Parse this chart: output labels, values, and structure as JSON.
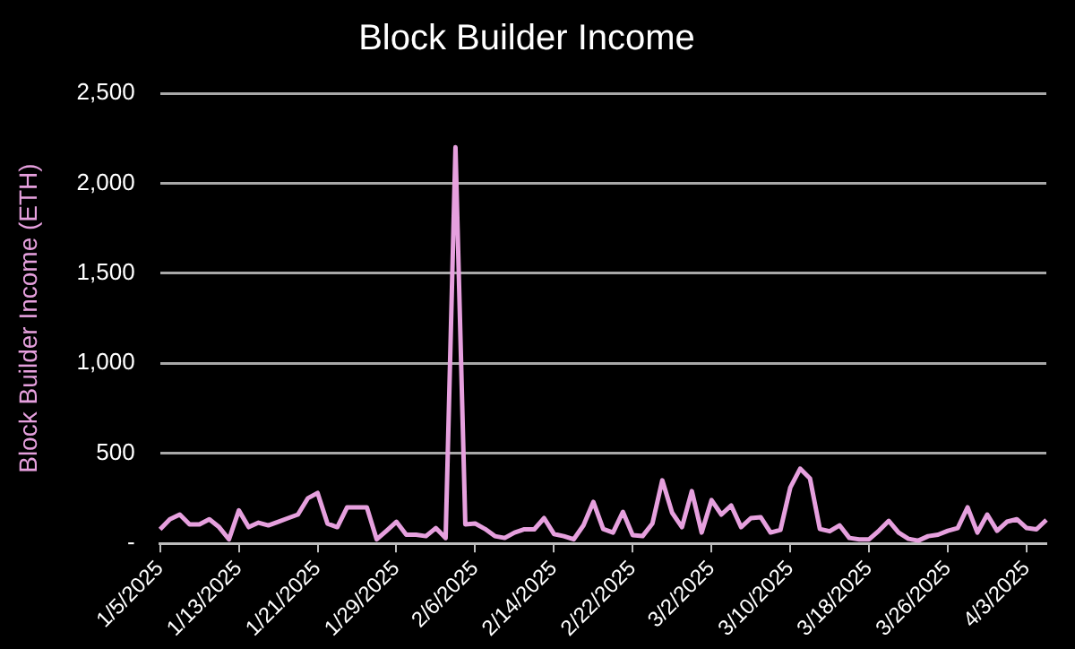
{
  "chart_data": {
    "type": "line",
    "title": "Block Builder Income",
    "ylabel": "Block Builder Income (ETH)",
    "categories": [
      "1/5/2025",
      null,
      null,
      null,
      null,
      null,
      null,
      null,
      "1/13/2025",
      null,
      null,
      null,
      null,
      null,
      null,
      null,
      "1/21/2025",
      null,
      null,
      null,
      null,
      null,
      null,
      null,
      "1/29/2025",
      null,
      null,
      null,
      null,
      null,
      null,
      null,
      "2/6/2025",
      null,
      null,
      null,
      null,
      null,
      null,
      null,
      "2/14/2025",
      null,
      null,
      null,
      null,
      null,
      null,
      null,
      "2/22/2025",
      null,
      null,
      null,
      null,
      null,
      null,
      null,
      "3/2/2025",
      null,
      null,
      null,
      null,
      null,
      null,
      null,
      "3/10/2025",
      null,
      null,
      null,
      null,
      null,
      null,
      null,
      "3/18/2025",
      null,
      null,
      null,
      null,
      null,
      null,
      null,
      "3/26/2025",
      null,
      null,
      null,
      null,
      null,
      null,
      null,
      "4/3/2025",
      null,
      null
    ],
    "series": [
      {
        "color": "#e6a0de",
        "values": [
          78,
          134,
          160,
          105,
          105,
          134,
          90,
          22,
          183,
          90,
          115,
          100,
          120,
          140,
          160,
          250,
          280,
          110,
          90,
          200,
          200,
          200,
          22,
          70,
          120,
          48,
          48,
          40,
          85,
          30,
          2200,
          105,
          110,
          80,
          40,
          30,
          60,
          78,
          78,
          140,
          52,
          40,
          22,
          100,
          230,
          80,
          60,
          175,
          45,
          40,
          110,
          350,
          170,
          90,
          290,
          60,
          240,
          160,
          210,
          90,
          140,
          145,
          60,
          75,
          310,
          415,
          360,
          80,
          67,
          100,
          30,
          22,
          22,
          70,
          125,
          60,
          25,
          15,
          40,
          48,
          70,
          85,
          200,
          60,
          160,
          70,
          120,
          134,
          85,
          78,
          130
        ]
      }
    ],
    "ylim": [
      0,
      2500
    ],
    "yticks": [
      {
        "value": 0,
        "label": "-"
      },
      {
        "value": 500,
        "label": "500"
      },
      {
        "value": 1000,
        "label": "1,000"
      },
      {
        "value": 1500,
        "label": "1,500"
      },
      {
        "value": 2000,
        "label": "2,000"
      },
      {
        "value": 2500,
        "label": "2,500"
      }
    ],
    "grid": "y",
    "legend": false,
    "marker": "none",
    "line_style": "solid"
  }
}
